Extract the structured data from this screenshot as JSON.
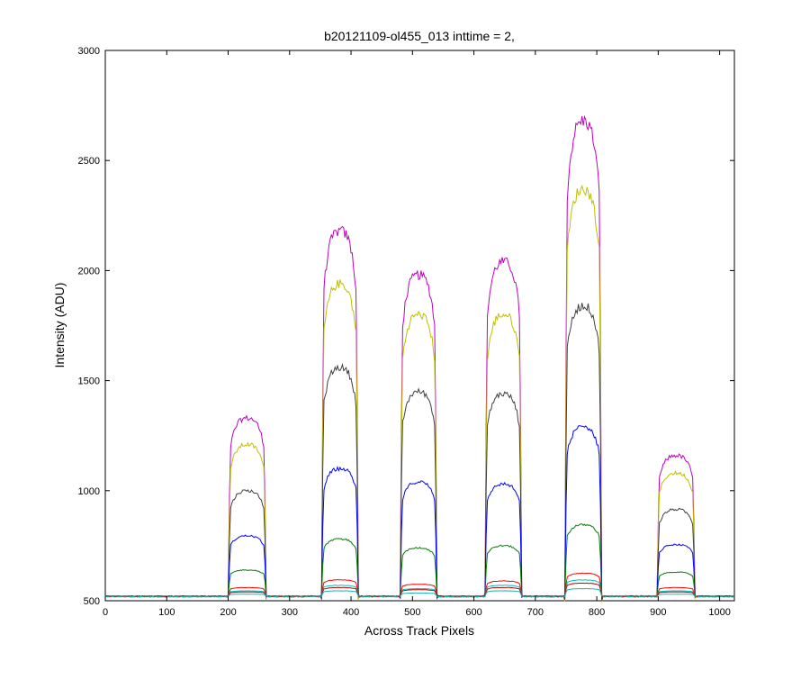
{
  "chart_data": {
    "type": "line",
    "title": "b20121109-ol455_013 inttime = 2,",
    "xlabel": "Across Track Pixels",
    "ylabel": "Intensity (ADU)",
    "xlim": [
      0,
      1024
    ],
    "ylim": [
      500,
      3000
    ],
    "xticks": [
      0,
      100,
      200,
      300,
      400,
      500,
      600,
      700,
      800,
      900,
      1000
    ],
    "yticks": [
      500,
      1000,
      1500,
      2000,
      2500,
      3000
    ],
    "grid": false,
    "legend": "none",
    "background_level": 520,
    "segments": [
      {
        "x_start": 200,
        "x_end": 262
      },
      {
        "x_start": 352,
        "x_end": 412
      },
      {
        "x_start": 480,
        "x_end": 540
      },
      {
        "x_start": 618,
        "x_end": 678
      },
      {
        "x_start": 748,
        "x_end": 808
      },
      {
        "x_start": 898,
        "x_end": 960
      }
    ],
    "series": [
      {
        "color": "#bf00bf",
        "peaks": [
          1330,
          2180,
          1980,
          2040,
          2680,
          1160
        ]
      },
      {
        "color": "#bfbf00",
        "peaks": [
          1210,
          1940,
          1800,
          1800,
          2370,
          1080
        ]
      },
      {
        "color": "#404040",
        "peaks": [
          1000,
          1560,
          1450,
          1440,
          1840,
          915
        ]
      },
      {
        "color": "#0000ff",
        "peaks": [
          795,
          1100,
          1040,
          1030,
          1290,
          755
        ]
      },
      {
        "color": "#007f00",
        "peaks": [
          640,
          780,
          740,
          750,
          845,
          630
        ]
      },
      {
        "color": "#ff0000",
        "peaks": [
          560,
          595,
          575,
          590,
          625,
          560
        ]
      },
      {
        "color": "#00bfbf",
        "peaks": [
          545,
          570,
          555,
          570,
          595,
          545
        ]
      },
      {
        "color": "#bf0000",
        "peaks": [
          540,
          560,
          550,
          560,
          580,
          540
        ]
      },
      {
        "color": "#20b2aa",
        "peaks": [
          530,
          545,
          535,
          545,
          555,
          530
        ]
      }
    ]
  }
}
